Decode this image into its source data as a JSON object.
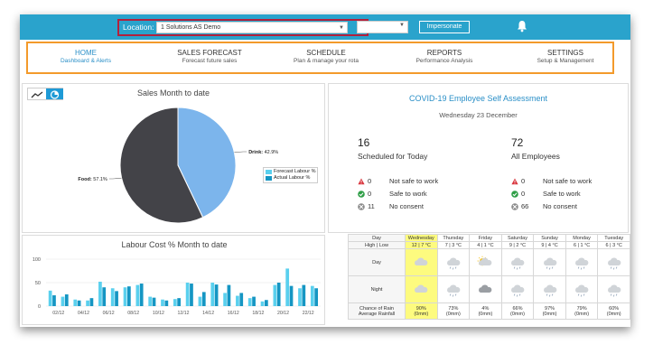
{
  "topbar": {
    "location_label": "Location:",
    "location_value": "1 Solutions AS Demo",
    "impersonate_label": "Impersonate"
  },
  "nav": [
    {
      "title": "HOME",
      "subtitle": "Dashboard & Alerts"
    },
    {
      "title": "SALES FORECAST",
      "subtitle": "Forecast future sales"
    },
    {
      "title": "SCHEDULE",
      "subtitle": "Plan & manage your rota"
    },
    {
      "title": "REPORTS",
      "subtitle": "Performance Analysis"
    },
    {
      "title": "SETTINGS",
      "subtitle": "Setup & Management"
    }
  ],
  "sales_chart": {
    "title": "Sales Month to date",
    "chart_data": {
      "type": "pie",
      "title": "Sales Month to date",
      "slices": [
        {
          "label": "Drink",
          "value": 42.9,
          "display": "42.9%",
          "color": "#7cb5ec"
        },
        {
          "label": "Food",
          "value": 57.1,
          "display": "57.1%",
          "color": "#434348"
        }
      ]
    }
  },
  "labour_chart": {
    "title": "Labour Cost % Month to date",
    "chart_data": {
      "type": "bar",
      "title": "Labour Cost % Month to date",
      "ylim": [
        0,
        100
      ],
      "yticks": [
        "0",
        "50",
        "100"
      ],
      "x_tick_labels": [
        "02/12",
        "04/12",
        "06/12",
        "08/12",
        "10/12",
        "12/12",
        "14/12",
        "16/12",
        "18/12",
        "20/12",
        "22/12"
      ],
      "series": [
        {
          "name": "Forecast Labour %",
          "color": "#5ad0ee",
          "values": [
            33,
            20,
            14,
            12,
            52,
            38,
            40,
            45,
            20,
            14,
            15,
            50,
            20,
            50,
            28,
            22,
            17,
            10,
            45,
            80,
            38,
            43
          ]
        },
        {
          "name": "Actual Labour %",
          "color": "#1596c3",
          "values": [
            23,
            25,
            12,
            17,
            40,
            32,
            42,
            48,
            18,
            12,
            17,
            48,
            30,
            46,
            45,
            28,
            20,
            13,
            50,
            43,
            45,
            38
          ]
        }
      ]
    }
  },
  "covid": {
    "title": "COVID-19 Employee Self Assessment",
    "date": "Wednesday 23 December",
    "scheduled_count": "16",
    "scheduled_label": "Scheduled for Today",
    "employees_count": "72",
    "employees_label": "All Employees",
    "left": [
      {
        "icon": "warning-icon",
        "count": "0",
        "text": "Not safe to work"
      },
      {
        "icon": "check-icon",
        "count": "0",
        "text": "Safe to work"
      },
      {
        "icon": "no-consent-icon",
        "count": "11",
        "text": "No consent"
      }
    ],
    "right": [
      {
        "icon": "warning-icon",
        "count": "0",
        "text": "Not safe to work"
      },
      {
        "icon": "check-icon",
        "count": "0",
        "text": "Safe to work"
      },
      {
        "icon": "no-consent-icon",
        "count": "66",
        "text": "No consent"
      }
    ]
  },
  "weather": {
    "day_header": "Day",
    "temp_header": "High | Low",
    "day_row_label": "Day",
    "night_row_label": "Night",
    "rain_label_1": "Chance of Rain",
    "rain_label_2": "Average Rainfall",
    "days": [
      {
        "name": "Wednesday",
        "temp": "12 | 7 °C",
        "day_icon": "cloud-icon",
        "night_icon": "cloud-icon",
        "rain": "90%",
        "rainfall": "(0mm)"
      },
      {
        "name": "Thursday",
        "temp": "7 | 3 °C",
        "day_icon": "rain-icon",
        "night_icon": "rain-icon",
        "rain": "73%",
        "rainfall": "(0mm)"
      },
      {
        "name": "Friday",
        "temp": "4 | 1 °C",
        "day_icon": "sun-cloud-icon",
        "night_icon": "dark-cloud-icon",
        "rain": "4%",
        "rainfall": "(0mm)"
      },
      {
        "name": "Saturday",
        "temp": "9 | 2 °C",
        "day_icon": "rain-icon",
        "night_icon": "rain-icon",
        "rain": "66%",
        "rainfall": "(0mm)"
      },
      {
        "name": "Sunday",
        "temp": "9 | 4 °C",
        "day_icon": "rain-icon",
        "night_icon": "rain-icon",
        "rain": "97%",
        "rainfall": "(0mm)"
      },
      {
        "name": "Monday",
        "temp": "6 | 1 °C",
        "day_icon": "rain-icon",
        "night_icon": "rain-icon",
        "rain": "79%",
        "rainfall": "(0mm)"
      },
      {
        "name": "Tuesday",
        "temp": "6 | 3 °C",
        "day_icon": "rain-icon",
        "night_icon": "rain-icon",
        "rain": "60%",
        "rainfall": "(0mm)"
      }
    ]
  },
  "colors": {
    "topbar": "#2aa3cc",
    "location_highlight": "#b3203c",
    "nav_highlight": "#f39a2b",
    "accent": "#2a8fc7",
    "today": "#fdfb7f"
  }
}
